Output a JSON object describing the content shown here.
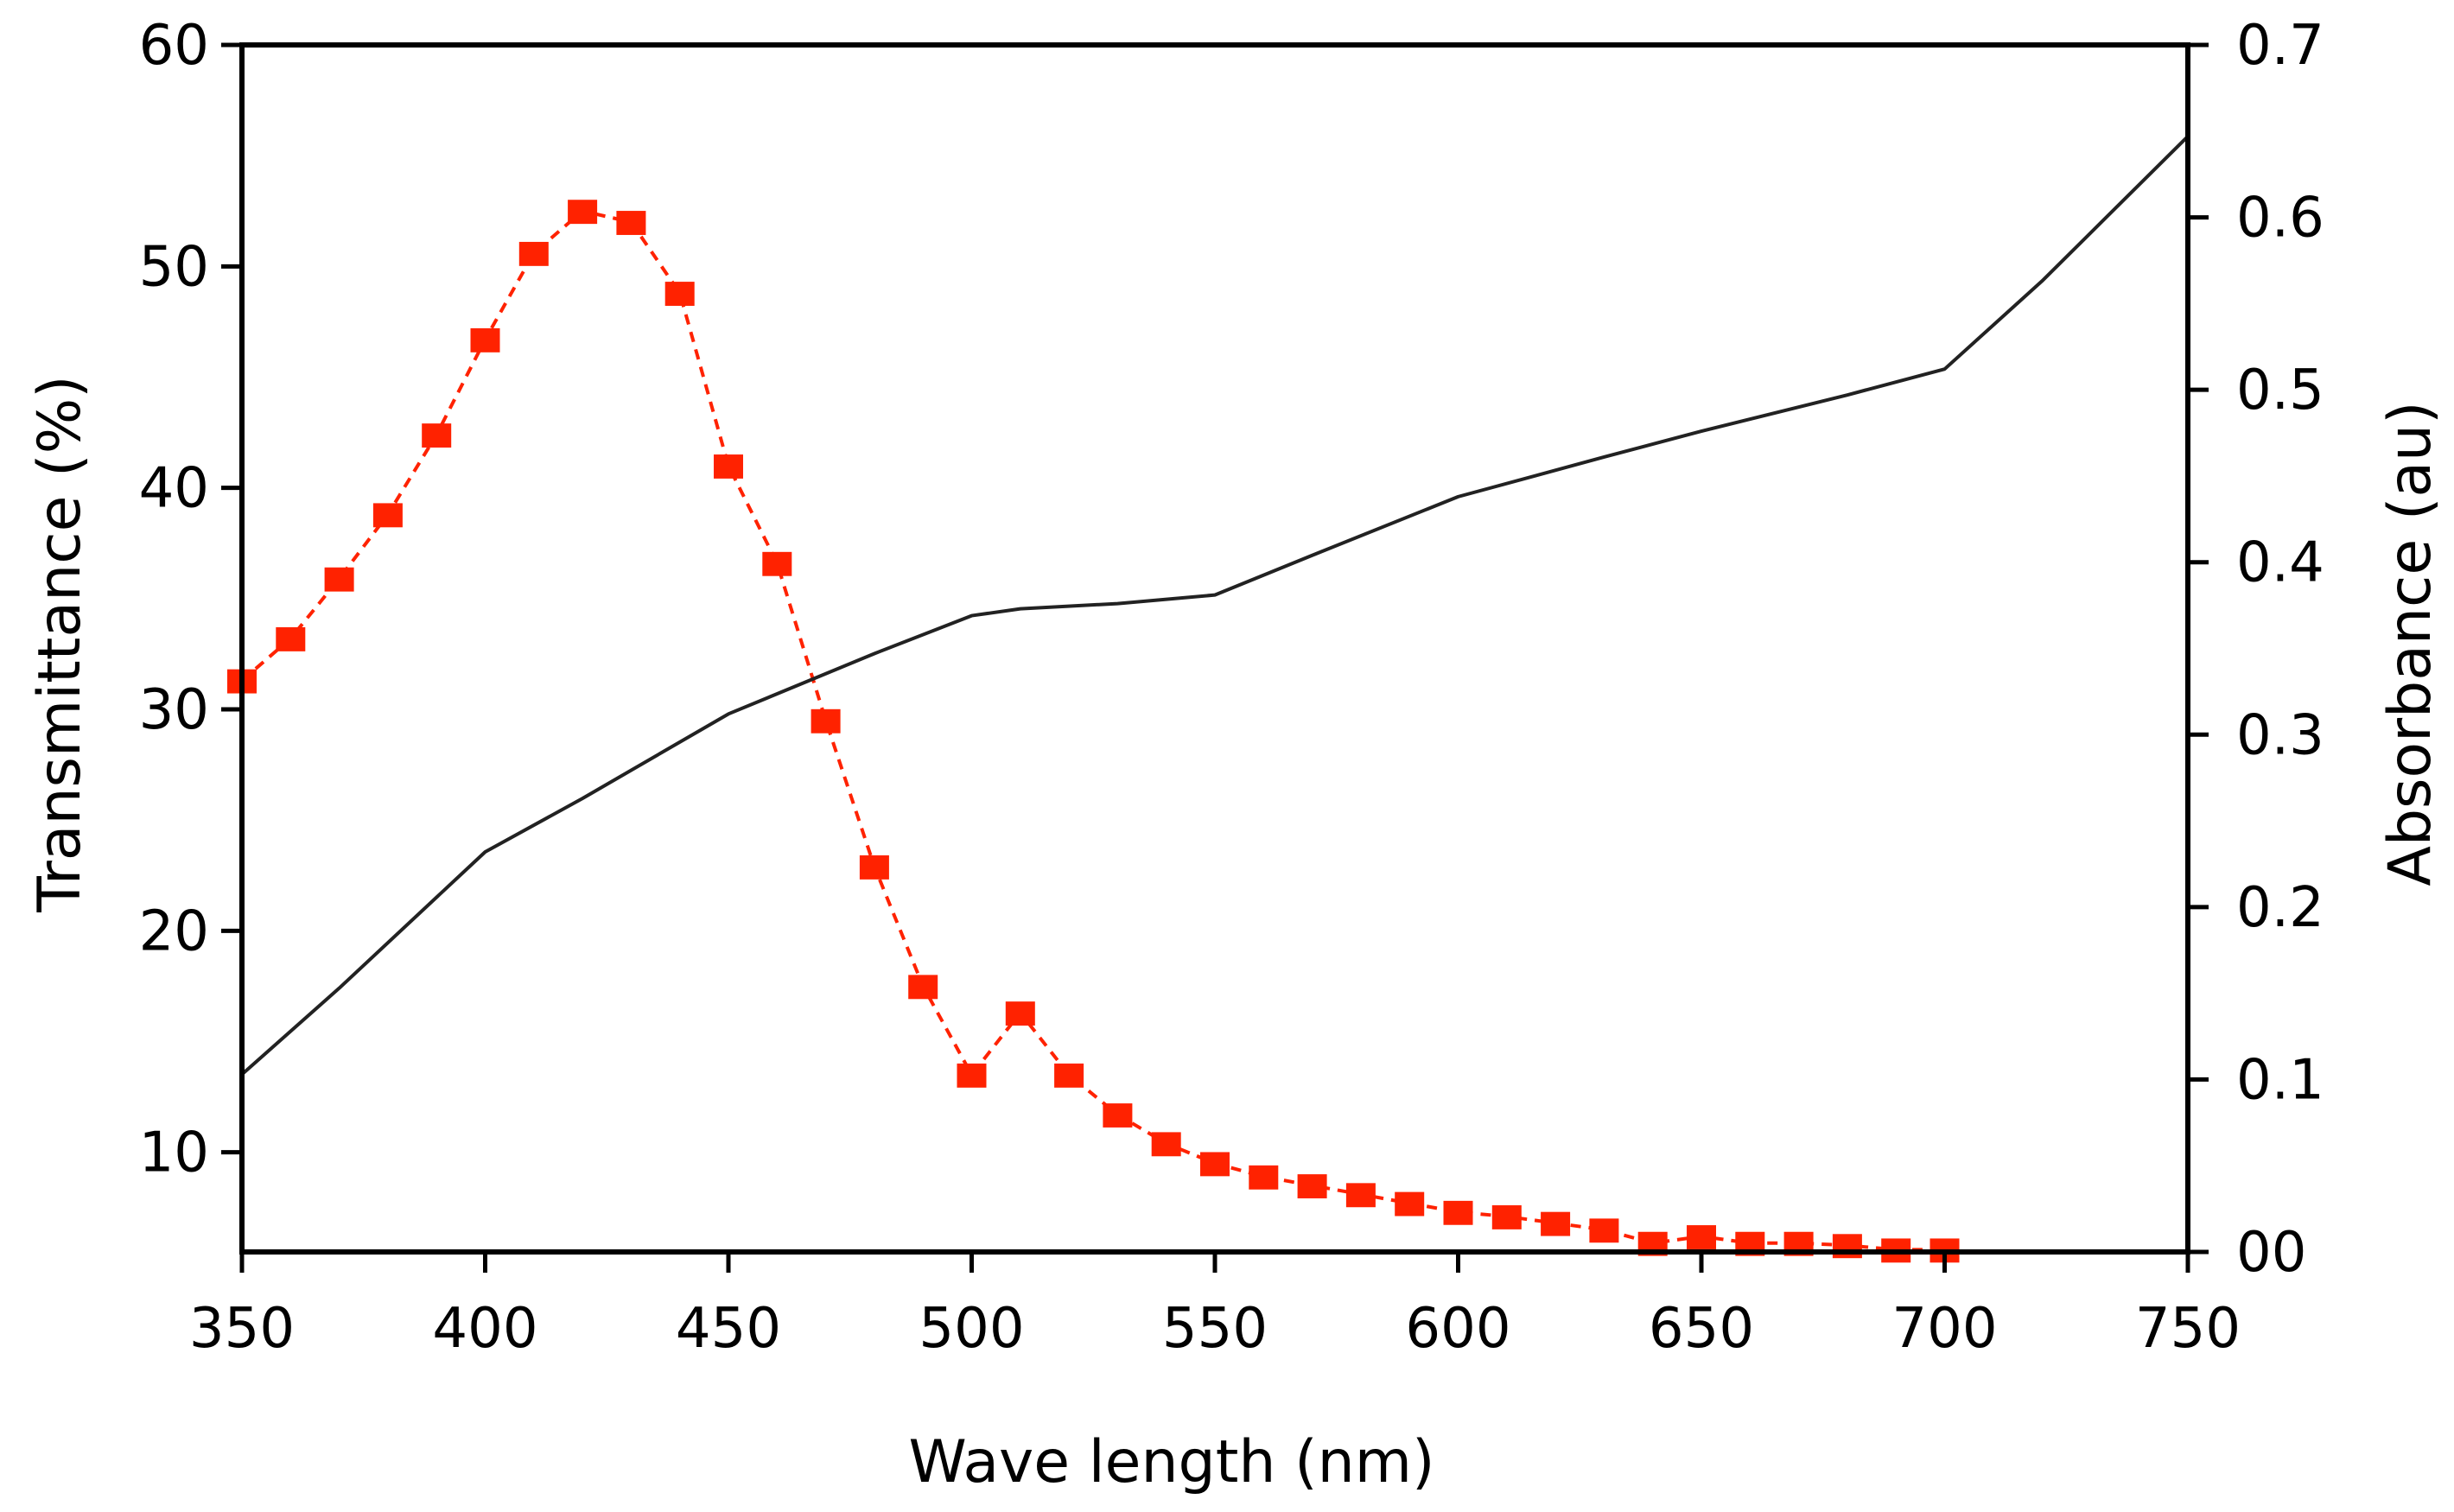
{
  "chart_data": {
    "type": "line",
    "title": "",
    "xlabel": "Wave length (nm)",
    "ylabel": "Transmittance (%)",
    "ylabel_right": "Absorbance (au)",
    "xlim": [
      350,
      750
    ],
    "ylim": [
      5.5,
      60
    ],
    "ylim_right": [
      0,
      0.7
    ],
    "x_ticks": [
      350,
      400,
      450,
      500,
      550,
      600,
      650,
      700,
      750
    ],
    "y_ticks": [
      10,
      20,
      30,
      40,
      50,
      60
    ],
    "y_tick_labels": [
      "10",
      "20",
      "30",
      "40",
      "50",
      "60"
    ],
    "y_right_ticks": [
      0,
      0.1,
      0.2,
      0.3,
      0.4,
      0.5,
      0.6,
      0.7
    ],
    "y_right_tick_labels": [
      "00",
      "0.1",
      "0.2",
      "0.3",
      "0.4",
      "0.5",
      "0.6",
      "0.7"
    ],
    "series": [
      {
        "name": "Transmittance",
        "axis": "left",
        "style": "dashed-square-markers",
        "color": "#ff2200",
        "x": [
          350,
          360,
          370,
          380,
          390,
          400,
          410,
          420,
          430,
          440,
          450,
          460,
          470,
          480,
          490,
          500,
          510,
          520,
          530,
          540,
          550,
          560,
          570,
          580,
          590,
          600,
          610,
          620,
          630,
          640,
          650,
          660,
          670,
          680,
          690,
          700
        ],
        "y": [
          31.3,
          33.2,
          35.9,
          38.8,
          42.4,
          46.7,
          50.6,
          52.5,
          52.0,
          48.8,
          41.0,
          36.6,
          29.5,
          22.9,
          17.5,
          13.5,
          16.3,
          13.5,
          11.7,
          10.4,
          9.5,
          8.9,
          8.5,
          8.1,
          7.7,
          7.3,
          7.1,
          6.8,
          6.5,
          5.9,
          6.2,
          5.9,
          5.9,
          5.8,
          5.6,
          5.6
        ]
      },
      {
        "name": "Absorbance",
        "axis": "right",
        "style": "solid-line",
        "color": "#222222",
        "x": [
          350,
          370,
          400,
          420,
          450,
          480,
          500,
          510,
          530,
          550,
          570,
          600,
          630,
          650,
          680,
          700,
          720,
          750
        ],
        "y": [
          0.103,
          0.153,
          0.232,
          0.263,
          0.312,
          0.347,
          0.369,
          0.373,
          0.376,
          0.381,
          0.404,
          0.438,
          0.461,
          0.476,
          0.497,
          0.512,
          0.563,
          0.647
        ]
      }
    ]
  }
}
